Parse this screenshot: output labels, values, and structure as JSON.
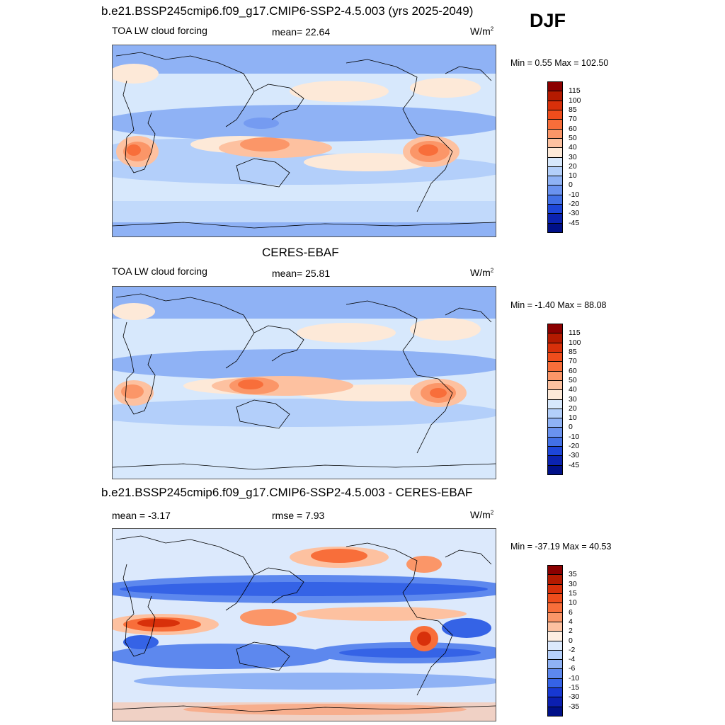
{
  "season": "DJF",
  "units": "W/m",
  "units_sup": "2",
  "panels": [
    {
      "title": "b.e21.BSSP245cmip6.f09_g17.CMIP6-SSP2-4.5.003 (yrs 2025-2049)",
      "left_label": "TOA LW cloud forcing",
      "mid_label": "mean=  22.64",
      "minmax": "Min =   0.55 Max = 102.50",
      "colorbar": {
        "labels": [
          "115",
          "100",
          "85",
          "70",
          "60",
          "50",
          "40",
          "30",
          "20",
          "10",
          "0",
          "-10",
          "-20",
          "-30",
          "-45"
        ],
        "colors": [
          "#8b0000",
          "#b41a00",
          "#d8300a",
          "#ef4d1c",
          "#f86e3a",
          "#fb9668",
          "#fdc1a0",
          "#fde9d8",
          "#d7e8fc",
          "#b3cffa",
          "#8fb2f5",
          "#6a92ef",
          "#4270e6",
          "#1d46d9",
          "#0b23b0",
          "#001088"
        ]
      }
    },
    {
      "title": "CERES-EBAF",
      "left_label": "TOA LW cloud forcing",
      "mid_label": "mean=  25.81",
      "minmax": "Min =  -1.40 Max =  88.08",
      "colorbar": {
        "labels": [
          "115",
          "100",
          "85",
          "70",
          "60",
          "50",
          "40",
          "30",
          "20",
          "10",
          "0",
          "-10",
          "-20",
          "-30",
          "-45"
        ],
        "colors": [
          "#8b0000",
          "#b41a00",
          "#d8300a",
          "#ef4d1c",
          "#f86e3a",
          "#fb9668",
          "#fdc1a0",
          "#fde9d8",
          "#d7e8fc",
          "#b3cffa",
          "#8fb2f5",
          "#6a92ef",
          "#4270e6",
          "#1d46d9",
          "#0b23b0",
          "#001088"
        ]
      }
    },
    {
      "title": "b.e21.BSSP245cmip6.f09_g17.CMIP6-SSP2-4.5.003 - CERES-EBAF",
      "left_label": "mean =  -3.17",
      "mid_label": "rmse =   7.93",
      "minmax": "Min = -37.19 Max =  40.53",
      "colorbar": {
        "labels": [
          "35",
          "30",
          "15",
          "10",
          "6",
          "4",
          "2",
          "0",
          "-2",
          "-4",
          "-6",
          "-10",
          "-15",
          "-30",
          "-35"
        ],
        "colors": [
          "#8b0000",
          "#b41a00",
          "#d8300a",
          "#ef4d1c",
          "#f86e3a",
          "#fb9668",
          "#fdc1a0",
          "#fdeee2",
          "#dce9fc",
          "#b6d0fa",
          "#8fb2f5",
          "#5d88ee",
          "#3563e6",
          "#1738d2",
          "#0b1fb0",
          "#001088"
        ]
      }
    }
  ]
}
